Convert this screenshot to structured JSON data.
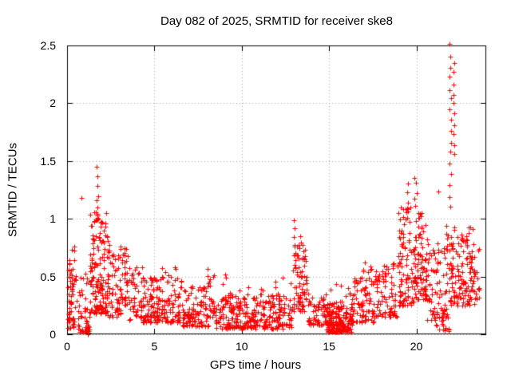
{
  "window": {
    "title": "Day 082 of 2025, SRMTID for receiver ske8"
  },
  "colors": {
    "background": "#ffffff",
    "marker": "#ff0000",
    "grid": "#a8a8a8",
    "border": "#000000",
    "text": "#000000"
  },
  "chart_data": {
    "type": "scatter",
    "title": "Day 082 of 2025, SRMTID for receiver ske8",
    "xlabel": "GPS time / hours",
    "ylabel": "SRMTID / TECUs",
    "xlim": [
      0,
      24
    ],
    "ylim": [
      0,
      2.5
    ],
    "xticks": [
      0,
      5,
      10,
      15,
      20
    ],
    "yticks": [
      0,
      0.5,
      1,
      1.5,
      2,
      2.5
    ],
    "grid": true,
    "legend": "none",
    "marker": "plus",
    "marker_color": "#ff0000",
    "marker_size": 7,
    "seed": 1337,
    "description": "Dense scatter of SRMTID values vs GPS time; high scatter 0-3h (peak ~1.45 at ~1.8h), low band ~0.05-0.45 from 4-13h with bump ~0.55 at 8.3h, spike to ~1.0 at ~13.1h, quiet minimum ~0.02-0.3 near 15-16h, rising activity after 17h with clusters to ~1.3 at 19.5h and ~1.37 at 20h, dip near 21.4h, tall spike to 2.5 at ~22h, band 0.25-0.95 until ~23.6h",
    "clusters": [
      [
        0.02,
        0.5,
        60,
        0.05,
        0.8,
        1.3
      ],
      [
        0.45,
        1.3,
        45,
        0.02,
        0.62,
        1.5
      ],
      [
        0.9,
        1.3,
        10,
        0.0,
        0.07,
        1.0
      ],
      [
        1.3,
        2.35,
        160,
        0.18,
        1.06,
        1.5
      ],
      [
        2.35,
        3.1,
        60,
        0.15,
        0.8,
        1.4
      ],
      [
        3.05,
        3.5,
        35,
        0.25,
        0.78,
        1.3
      ],
      [
        3.5,
        4.3,
        50,
        0.12,
        0.58,
        1.4
      ],
      [
        4.3,
        6.6,
        170,
        0.1,
        0.5,
        1.6
      ],
      [
        4.3,
        6.6,
        8,
        0.45,
        0.58,
        1.0
      ],
      [
        6.6,
        8.1,
        110,
        0.07,
        0.42,
        1.5
      ],
      [
        8.05,
        8.55,
        25,
        0.15,
        0.58,
        1.2
      ],
      [
        8.5,
        12.9,
        300,
        0.05,
        0.35,
        1.35
      ],
      [
        8.5,
        12.9,
        16,
        0.3,
        0.52,
        1.0
      ],
      [
        12.9,
        13.75,
        75,
        0.2,
        0.8,
        1.5
      ],
      [
        13.75,
        14.9,
        70,
        0.08,
        0.36,
        1.4
      ],
      [
        14.85,
        16.3,
        180,
        0.02,
        0.28,
        1.6
      ],
      [
        15.0,
        16.3,
        8,
        0.26,
        0.45,
        1.0
      ],
      [
        16.3,
        17.6,
        85,
        0.1,
        0.5,
        1.35
      ],
      [
        16.8,
        17.6,
        8,
        0.45,
        0.62,
        1.0
      ],
      [
        17.6,
        18.9,
        85,
        0.15,
        0.62,
        1.3
      ],
      [
        18.9,
        19.85,
        95,
        0.25,
        1.1,
        1.45
      ],
      [
        19.85,
        20.6,
        95,
        0.3,
        1.05,
        1.35
      ],
      [
        20.6,
        21.6,
        65,
        0.12,
        0.8,
        1.4
      ],
      [
        21.1,
        21.9,
        25,
        0.03,
        0.24,
        1.2
      ],
      [
        21.6,
        22.35,
        65,
        0.25,
        0.95,
        1.3
      ],
      [
        22.35,
        23.35,
        95,
        0.25,
        0.93,
        1.25
      ],
      [
        23.3,
        23.62,
        14,
        0.3,
        0.78,
        1.2
      ]
    ],
    "streaks": [
      [
        1.75,
        6,
        1.0,
        1.46,
        0.1
      ],
      [
        0.82,
        1,
        1.18,
        1.18,
        0
      ],
      [
        1.68,
        1,
        1.15,
        1.15,
        0
      ],
      [
        13.05,
        6,
        0.6,
        1.0,
        0.1
      ],
      [
        13.3,
        4,
        0.55,
        0.85,
        0.15
      ],
      [
        19.45,
        5,
        1.0,
        1.3,
        0.18
      ],
      [
        19.95,
        5,
        1.1,
        1.37,
        0.15
      ],
      [
        21.25,
        1,
        1.25,
        1.25,
        0
      ],
      [
        21.95,
        16,
        1.1,
        2.5,
        0.1
      ],
      [
        22.15,
        10,
        1.55,
        2.35,
        0.08
      ]
    ]
  }
}
